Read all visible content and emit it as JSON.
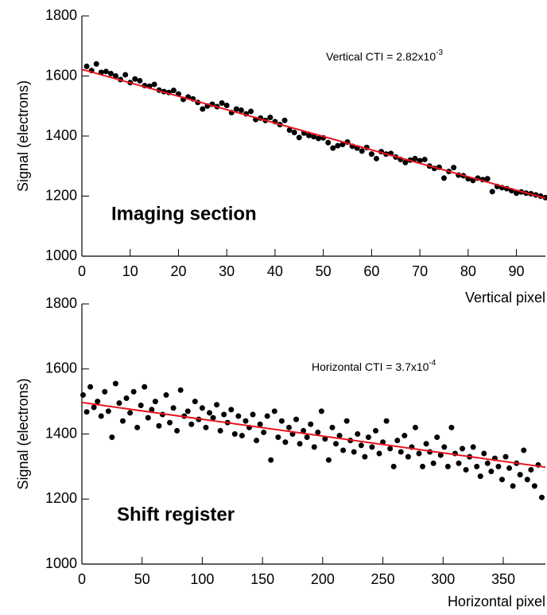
{
  "chart_data": [
    {
      "type": "scatter",
      "label": "Imaging section",
      "xlabel": "Vertical pixel",
      "ylabel": "Signal (electrons)",
      "annotation": {
        "text": "Vertical CTI = 2.82x10",
        "exponent": "-3"
      },
      "color": "#000000",
      "x": [
        1,
        2,
        3,
        4,
        5,
        6,
        7,
        8,
        9,
        10,
        11,
        12,
        13,
        14,
        15,
        16,
        17,
        18,
        19,
        20,
        21,
        22,
        23,
        24,
        25,
        26,
        27,
        28,
        29,
        30,
        31,
        32,
        33,
        34,
        35,
        36,
        37,
        38,
        39,
        40,
        41,
        42,
        43,
        44,
        45,
        46,
        47,
        48,
        49,
        50,
        51,
        52,
        53,
        54,
        55,
        56,
        57,
        58,
        59,
        60,
        61,
        62,
        63,
        64,
        65,
        66,
        67,
        68,
        69,
        70,
        71,
        72,
        73,
        74,
        75,
        76,
        77,
        78,
        79,
        80,
        81,
        82,
        83,
        84,
        85,
        86,
        87,
        88,
        89,
        90,
        91,
        92,
        93,
        94,
        95,
        96
      ],
      "values": [
        1632,
        1618,
        1640,
        1612,
        1615,
        1608,
        1600,
        1588,
        1604,
        1578,
        1590,
        1584,
        1568,
        1566,
        1572,
        1553,
        1548,
        1545,
        1552,
        1540,
        1522,
        1530,
        1524,
        1512,
        1490,
        1500,
        1506,
        1498,
        1510,
        1502,
        1478,
        1490,
        1486,
        1474,
        1482,
        1455,
        1460,
        1452,
        1462,
        1448,
        1438,
        1452,
        1420,
        1412,
        1395,
        1410,
        1402,
        1398,
        1392,
        1394,
        1378,
        1360,
        1368,
        1372,
        1380,
        1366,
        1360,
        1350,
        1362,
        1340,
        1325,
        1348,
        1340,
        1342,
        1330,
        1322,
        1312,
        1320,
        1325,
        1318,
        1322,
        1300,
        1292,
        1296,
        1260,
        1282,
        1295,
        1270,
        1268,
        1258,
        1252,
        1260,
        1255,
        1258,
        1215,
        1232,
        1228,
        1225,
        1218,
        1210,
        1214,
        1210,
        1208,
        1204,
        1200,
        1195
      ],
      "fit": {
        "color": "#e8141e",
        "x": [
          0,
          96
        ],
        "y": [
          1622,
          1193
        ]
      },
      "xlim": [
        0,
        96
      ],
      "ylim": [
        1000,
        1800
      ],
      "xticks": [
        0,
        10,
        20,
        30,
        40,
        50,
        60,
        70,
        80,
        90
      ],
      "yticks": [
        1000,
        1200,
        1400,
        1600,
        1800
      ]
    },
    {
      "type": "scatter",
      "label": "Shift register",
      "xlabel": "Horizontal pixel",
      "ylabel": "Signal (electrons)",
      "annotation": {
        "text": "Horizontal CTI = 3.7x10",
        "exponent": "-4"
      },
      "color": "#000000",
      "x": [
        1,
        4,
        7,
        10,
        13,
        16,
        19,
        22,
        25,
        28,
        31,
        34,
        37,
        40,
        43,
        46,
        49,
        52,
        55,
        58,
        61,
        64,
        67,
        70,
        73,
        76,
        79,
        82,
        85,
        88,
        91,
        94,
        97,
        100,
        103,
        106,
        109,
        112,
        115,
        118,
        121,
        124,
        127,
        130,
        133,
        136,
        139,
        142,
        145,
        148,
        151,
        154,
        157,
        160,
        163,
        166,
        169,
        172,
        175,
        178,
        181,
        184,
        187,
        190,
        193,
        196,
        199,
        202,
        205,
        208,
        211,
        214,
        217,
        220,
        223,
        226,
        229,
        232,
        235,
        238,
        241,
        244,
        247,
        250,
        253,
        256,
        259,
        262,
        265,
        268,
        271,
        274,
        277,
        280,
        283,
        286,
        289,
        292,
        295,
        298,
        301,
        304,
        307,
        310,
        313,
        316,
        319,
        322,
        325,
        328,
        331,
        334,
        337,
        340,
        343,
        346,
        349,
        352,
        355,
        358,
        361,
        364,
        367,
        370,
        373,
        376,
        379,
        382
      ],
      "values": [
        1520,
        1468,
        1545,
        1482,
        1500,
        1455,
        1530,
        1470,
        1390,
        1555,
        1495,
        1440,
        1510,
        1465,
        1530,
        1420,
        1488,
        1545,
        1450,
        1475,
        1500,
        1425,
        1460,
        1520,
        1435,
        1480,
        1410,
        1535,
        1455,
        1470,
        1430,
        1500,
        1445,
        1480,
        1420,
        1465,
        1450,
        1490,
        1410,
        1460,
        1435,
        1475,
        1400,
        1455,
        1395,
        1440,
        1420,
        1460,
        1380,
        1430,
        1405,
        1455,
        1320,
        1470,
        1390,
        1440,
        1375,
        1420,
        1400,
        1445,
        1370,
        1410,
        1390,
        1430,
        1360,
        1405,
        1470,
        1385,
        1320,
        1420,
        1370,
        1395,
        1350,
        1440,
        1380,
        1345,
        1400,
        1365,
        1330,
        1390,
        1360,
        1410,
        1340,
        1375,
        1440,
        1355,
        1300,
        1380,
        1345,
        1395,
        1330,
        1360,
        1420,
        1340,
        1300,
        1370,
        1345,
        1310,
        1390,
        1335,
        1360,
        1300,
        1420,
        1340,
        1310,
        1355,
        1290,
        1330,
        1360,
        1300,
        1270,
        1340,
        1310,
        1285,
        1325,
        1300,
        1260,
        1330,
        1295,
        1240,
        1310,
        1275,
        1350,
        1260,
        1290,
        1240,
        1305,
        1205
      ],
      "fit": {
        "color": "#e8141e",
        "x": [
          0,
          385
        ],
        "y": [
          1497,
          1298
        ]
      },
      "xlim": [
        0,
        385
      ],
      "ylim": [
        1000,
        1800
      ],
      "xticks": [
        0,
        50,
        100,
        150,
        200,
        250,
        300,
        350
      ],
      "yticks": [
        1000,
        1200,
        1400,
        1600,
        1800
      ]
    }
  ]
}
